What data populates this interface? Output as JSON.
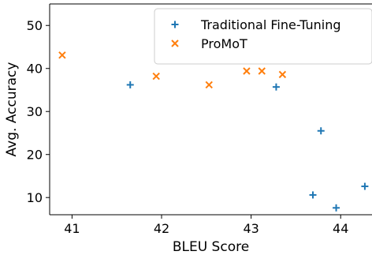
{
  "chart_data": {
    "type": "scatter",
    "xlabel": "BLEU Score",
    "ylabel": "Avg. Accuracy",
    "xlim": [
      40.75,
      44.35
    ],
    "ylim": [
      6,
      55
    ],
    "x_ticks": [
      41,
      42,
      43,
      44
    ],
    "y_ticks": [
      10,
      20,
      30,
      40,
      50
    ],
    "grid": false,
    "legend_position": "top-right",
    "series": [
      {
        "name": "Traditional Fine-Tuning",
        "marker": "plus",
        "color": "#1f77b4",
        "points": [
          {
            "x": 41.65,
            "y": 36.2
          },
          {
            "x": 43.28,
            "y": 35.7
          },
          {
            "x": 43.78,
            "y": 25.5
          },
          {
            "x": 43.69,
            "y": 10.6
          },
          {
            "x": 43.95,
            "y": 7.6
          },
          {
            "x": 44.27,
            "y": 12.6
          }
        ]
      },
      {
        "name": "ProMoT",
        "marker": "x",
        "color": "#ff7f0e",
        "points": [
          {
            "x": 40.89,
            "y": 43.1
          },
          {
            "x": 41.94,
            "y": 38.2
          },
          {
            "x": 42.53,
            "y": 36.2
          },
          {
            "x": 42.95,
            "y": 39.4
          },
          {
            "x": 43.12,
            "y": 39.4
          },
          {
            "x": 43.35,
            "y": 38.6
          }
        ]
      }
    ]
  }
}
